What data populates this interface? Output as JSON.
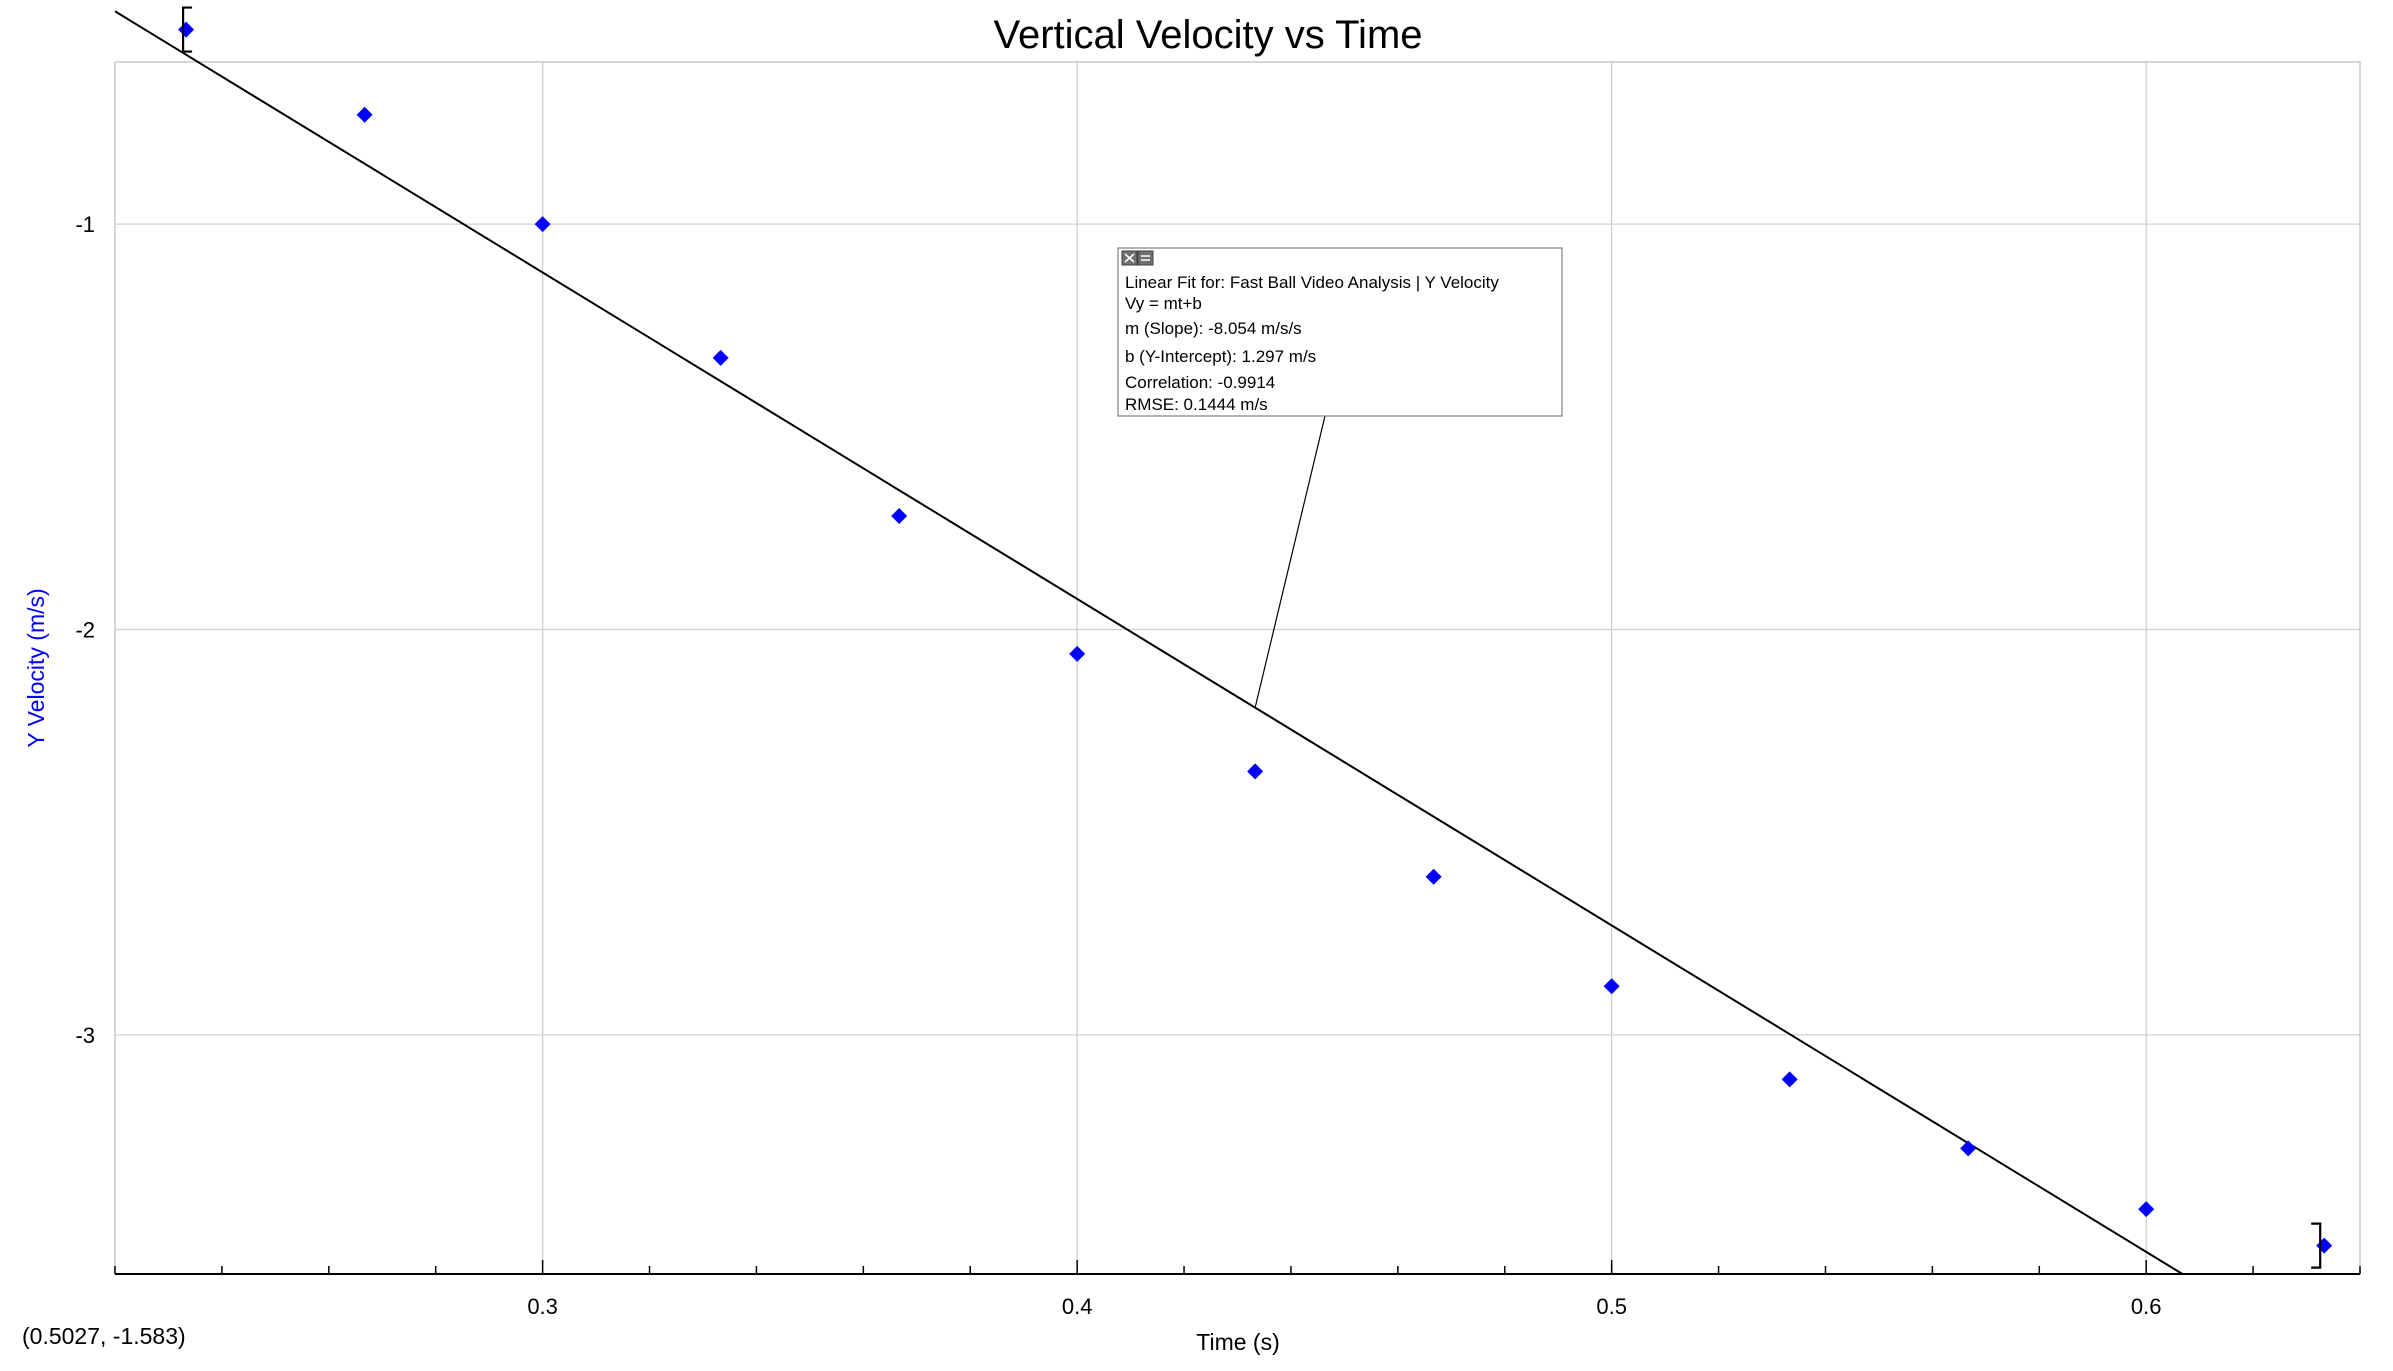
{
  "chart_data": {
    "type": "scatter",
    "title": "Vertical Velocity vs Time",
    "xlabel": "Time (s)",
    "ylabel": "Y Velocity (m/s)",
    "xlim": [
      0.22,
      0.64
    ],
    "ylim": [
      -3.59,
      -0.6
    ],
    "x_ticks": [
      0.3,
      0.4,
      0.5,
      0.6
    ],
    "x_tick_labels": [
      "0.3",
      "0.4",
      "0.5",
      "0.6"
    ],
    "y_ticks": [
      -1,
      -2,
      -3
    ],
    "y_tick_labels": [
      "-1",
      "-2",
      "-3"
    ],
    "grid": true,
    "series": [
      {
        "x": [
          0.2333,
          0.2667,
          0.3,
          0.3333,
          0.3667,
          0.4,
          0.4333,
          0.4667,
          0.5,
          0.5333,
          0.5667,
          0.6,
          0.6333
        ],
        "y": [
          -0.52,
          -0.73,
          -1.0,
          -1.33,
          -1.72,
          -2.06,
          -2.35,
          -2.61,
          -2.88,
          -3.11,
          -3.28,
          -3.43,
          -3.52
        ],
        "color": "#0000ff",
        "marker": "diamond"
      }
    ],
    "fit": {
      "type": "linear",
      "slope": -8.054,
      "intercept": 1.297,
      "color": "#000000"
    },
    "fit_box": {
      "line1": "Linear Fit for: Fast Ball Video Analysis | Y Velocity",
      "line2": "Vy = mt+b",
      "line3": "m (Slope): -8.054 m/s/s",
      "line4": "b (Y-Intercept): 1.297 m/s",
      "line5": "Correlation: -0.9914",
      "line6": "RMSE: 0.1444 m/s"
    },
    "coordinate_readout": "(0.5027, -1.583)",
    "colors": {
      "axis_label": "#0000ff",
      "grid": "#d0d0d0",
      "frame": "#c8c8c8"
    }
  }
}
